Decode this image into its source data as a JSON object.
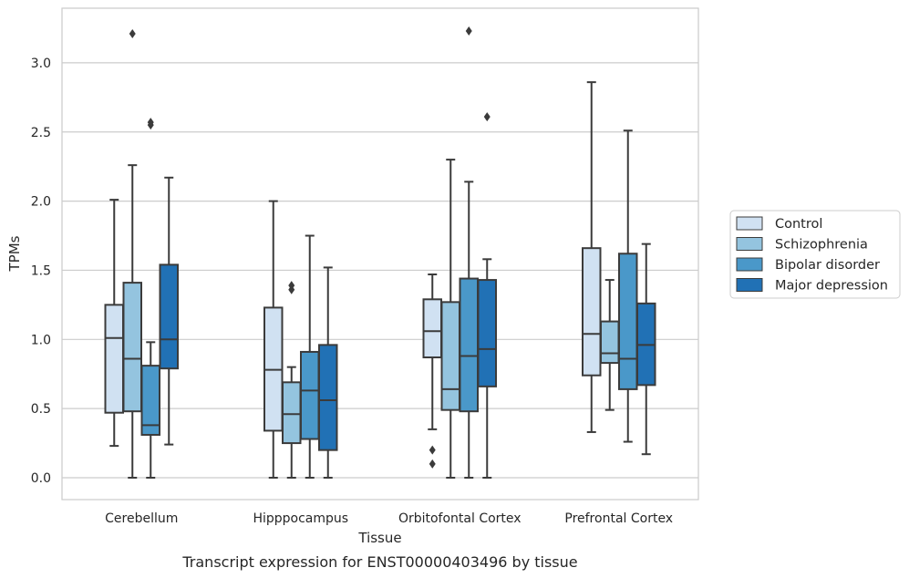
{
  "caption": "Transcript expression for ENST00000403496 by tissue",
  "chart_data": {
    "type": "box",
    "xlabel": "Tissue",
    "ylabel": "TPMs",
    "ylim": [
      -0.15,
      3.4
    ],
    "yticks": [
      "0.0",
      "0.5",
      "1.0",
      "1.5",
      "2.0",
      "2.5",
      "3.0"
    ],
    "grid": "horizontal",
    "legend_position": "right",
    "categories": [
      "Cerebellum",
      "Hipppocampus",
      "Orbitofontal Cortex",
      "Prefrontal Cortex"
    ],
    "series": [
      {
        "name": "Control",
        "color": "#d0e1f2",
        "boxes": [
          {
            "whisker_low": 0.23,
            "q1": 0.47,
            "median": 1.01,
            "q3": 1.25,
            "whisker_high": 2.01,
            "outliers": []
          },
          {
            "whisker_low": 0.0,
            "q1": 0.34,
            "median": 0.78,
            "q3": 1.23,
            "whisker_high": 2.0,
            "outliers": []
          },
          {
            "whisker_low": 0.35,
            "q1": 0.87,
            "median": 1.06,
            "q3": 1.29,
            "whisker_high": 1.47,
            "outliers": [
              0.2,
              0.1
            ]
          },
          {
            "whisker_low": 0.33,
            "q1": 0.74,
            "median": 1.04,
            "q3": 1.66,
            "whisker_high": 2.86,
            "outliers": []
          }
        ]
      },
      {
        "name": "Schizophrenia",
        "color": "#94c4df",
        "boxes": [
          {
            "whisker_low": 0.0,
            "q1": 0.48,
            "median": 0.86,
            "q3": 1.41,
            "whisker_high": 2.26,
            "outliers": [
              3.21
            ]
          },
          {
            "whisker_low": 0.0,
            "q1": 0.25,
            "median": 0.46,
            "q3": 0.69,
            "whisker_high": 0.8,
            "outliers": [
              1.36,
              1.39
            ]
          },
          {
            "whisker_low": 0.0,
            "q1": 0.49,
            "median": 0.64,
            "q3": 1.27,
            "whisker_high": 2.3,
            "outliers": []
          },
          {
            "whisker_low": 0.49,
            "q1": 0.83,
            "median": 0.9,
            "q3": 1.13,
            "whisker_high": 1.43,
            "outliers": []
          }
        ]
      },
      {
        "name": "Bipolar disorder",
        "color": "#4a98c9",
        "boxes": [
          {
            "whisker_low": 0.0,
            "q1": 0.31,
            "median": 0.38,
            "q3": 0.81,
            "whisker_high": 0.98,
            "outliers": [
              2.55,
              2.57
            ]
          },
          {
            "whisker_low": 0.0,
            "q1": 0.28,
            "median": 0.63,
            "q3": 0.91,
            "whisker_high": 1.75,
            "outliers": []
          },
          {
            "whisker_low": 0.0,
            "q1": 0.48,
            "median": 0.88,
            "q3": 1.44,
            "whisker_high": 2.14,
            "outliers": [
              3.23
            ]
          },
          {
            "whisker_low": 0.26,
            "q1": 0.64,
            "median": 0.86,
            "q3": 1.62,
            "whisker_high": 2.51,
            "outliers": []
          }
        ]
      },
      {
        "name": "Major depression",
        "color": "#2171b5",
        "boxes": [
          {
            "whisker_low": 0.24,
            "q1": 0.79,
            "median": 1.0,
            "q3": 1.54,
            "whisker_high": 2.17,
            "outliers": []
          },
          {
            "whisker_low": 0.0,
            "q1": 0.2,
            "median": 0.56,
            "q3": 0.96,
            "whisker_high": 1.52,
            "outliers": []
          },
          {
            "whisker_low": 0.0,
            "q1": 0.66,
            "median": 0.93,
            "q3": 1.43,
            "whisker_high": 1.58,
            "outliers": [
              2.61
            ]
          },
          {
            "whisker_low": 0.17,
            "q1": 0.67,
            "median": 0.96,
            "q3": 1.26,
            "whisker_high": 1.69,
            "outliers": []
          }
        ]
      }
    ]
  }
}
